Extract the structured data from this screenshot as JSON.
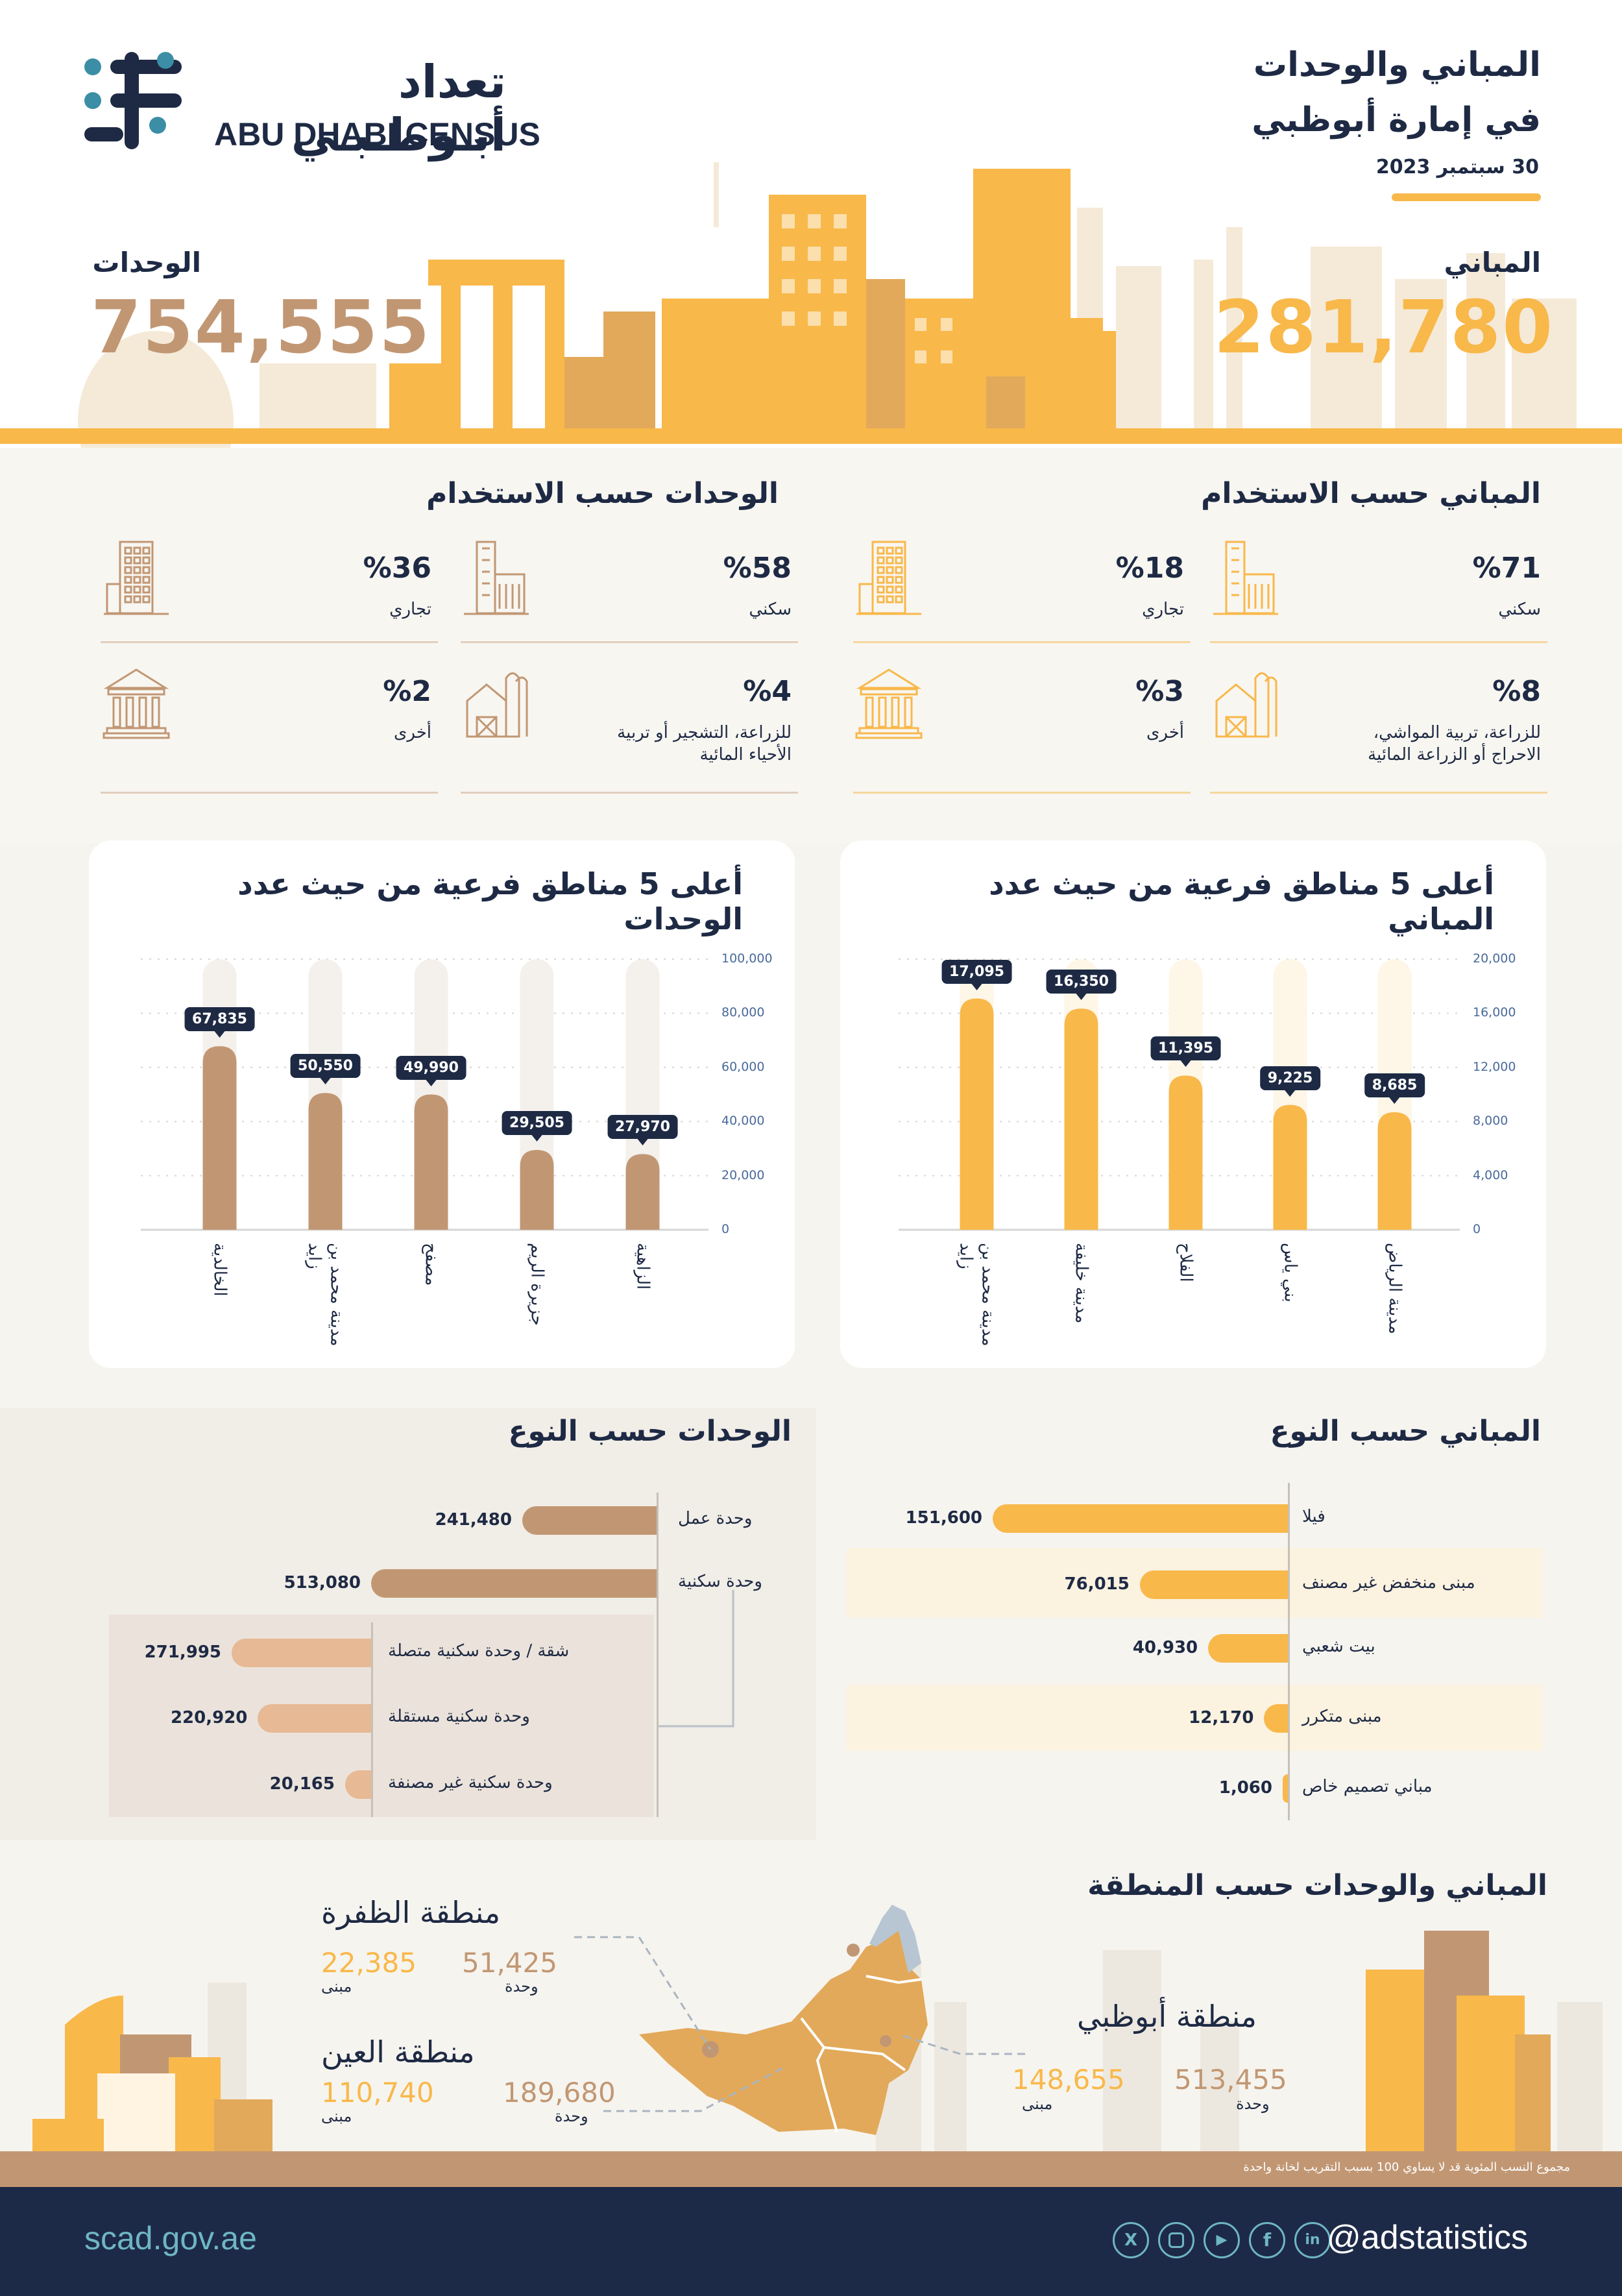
{
  "brand": {
    "name_ar": "تعداد أبـوظـبـي",
    "name_en": "ABU DHABI CENSUS"
  },
  "header": {
    "title_line1": "المباني والوحدات",
    "title_line2": "في إمارة أبوظبي",
    "date": "30 سبتمبر 2023",
    "buildings_label": "المباني",
    "buildings_value": "281,780",
    "units_label": "الوحدات",
    "units_value": "754,555"
  },
  "colors": {
    "gold": "#f8b84a",
    "brown": "#c19773",
    "navy": "#1e2a44"
  },
  "buildings_by_use": {
    "title": "المباني حسب الاستخدام",
    "items": [
      {
        "pct": "%71",
        "label": "سكني",
        "icon": "residential-building-icon"
      },
      {
        "pct": "%18",
        "label": "تجاري",
        "icon": "commercial-building-icon"
      },
      {
        "pct": "%8",
        "label": "للزراعة، تربية المواشي، الاحراج أو الزراعة المائية",
        "icon": "farm-building-icon"
      },
      {
        "pct": "%3",
        "label": "أخرى",
        "icon": "institution-icon"
      }
    ]
  },
  "units_by_use": {
    "title": "الوحدات حسب الاستخدام",
    "items": [
      {
        "pct": "%58",
        "label": "سكني",
        "icon": "residential-building-icon"
      },
      {
        "pct": "%36",
        "label": "تجاري",
        "icon": "commercial-building-icon"
      },
      {
        "pct": "%4",
        "label": "للزراعة، التشجير أو تربية الأحياء المائية",
        "icon": "farm-building-icon"
      },
      {
        "pct": "%2",
        "label": "أخرى",
        "icon": "institution-icon"
      }
    ]
  },
  "chart_data": [
    {
      "type": "bar",
      "title": "أعلى 5 مناطق فرعية من حيث عدد المباني",
      "categories": [
        "مدينة الرياض",
        "بني ياس",
        "الفلاح",
        "مدينة خليفة",
        "مدينة محمد بن زايد"
      ],
      "values": [
        8685,
        9225,
        11395,
        16350,
        17095
      ],
      "value_labels": [
        "8,685",
        "9,225",
        "11,395",
        "16,350",
        "17,095"
      ],
      "ylim": [
        0,
        20000
      ],
      "yticks": [
        "0",
        "4,000",
        "8,000",
        "12,000",
        "16,000",
        "20,000"
      ],
      "color": "#f8b84a"
    },
    {
      "type": "bar",
      "title": "أعلى 5 مناطق فرعية من حيث عدد الوحدات",
      "categories": [
        "الزاهية",
        "جزيرة الريم",
        "مصفح",
        "مدينة محمد بن زايد",
        "الخالدية"
      ],
      "values": [
        27970,
        29505,
        49990,
        50550,
        67835
      ],
      "value_labels": [
        "27,970",
        "29,505",
        "49,990",
        "50,550",
        "67,835"
      ],
      "ylim": [
        0,
        100000
      ],
      "yticks": [
        "0",
        "20,000",
        "40,000",
        "60,000",
        "80,000",
        "100,000"
      ],
      "color": "#c19773"
    },
    {
      "type": "bar",
      "title": "المباني حسب النوع",
      "categories": [
        "فيلا",
        "مبنى منخفض غير مصنف",
        "بيت شعبي",
        "مبنى متكرر",
        "مباني تصميم خاص"
      ],
      "values": [
        151600,
        76015,
        40930,
        12170,
        1060
      ],
      "value_labels": [
        "151,600",
        "76,015",
        "40,930",
        "12,170",
        "1,060"
      ],
      "color": "#f8b84a"
    },
    {
      "type": "bar",
      "title": "الوحدات حسب النوع",
      "categories": [
        "وحدة عمل",
        "وحدة سكنية",
        "شقة / وحدة سكنية متصلة",
        "وحدة سكنية مستقلة",
        "وحدة سكنية غير مصنفة"
      ],
      "values": [
        241480,
        513080,
        271995,
        220920,
        20165
      ],
      "value_labels": [
        "241,480",
        "513,080",
        "271,995",
        "220,920",
        "20,165"
      ],
      "color": "#c19773"
    }
  ],
  "regions": {
    "title": "المباني والوحدات حسب المنطقة",
    "dhafra": {
      "name": "منطقة الظفرة",
      "buildings": "22,385",
      "units": "51,425",
      "buildings_lbl": "مبنى",
      "units_lbl": "وحدة"
    },
    "ain": {
      "name": "منطقة العين",
      "buildings": "110,740",
      "units": "189,680",
      "buildings_lbl": "مبنى",
      "units_lbl": "وحدة"
    },
    "abudhabi": {
      "name": "منطقة أبوظبي",
      "buildings": "148,655",
      "units": "513,455",
      "buildings_lbl": "مبنى",
      "units_lbl": "وحدة"
    }
  },
  "note": "مجموع النسب المئوية قد لا يساوي 100 بسبب التقريب لخانة واحدة",
  "footer": {
    "website": "scad.gov.ae",
    "handle": "@adstatistics"
  }
}
